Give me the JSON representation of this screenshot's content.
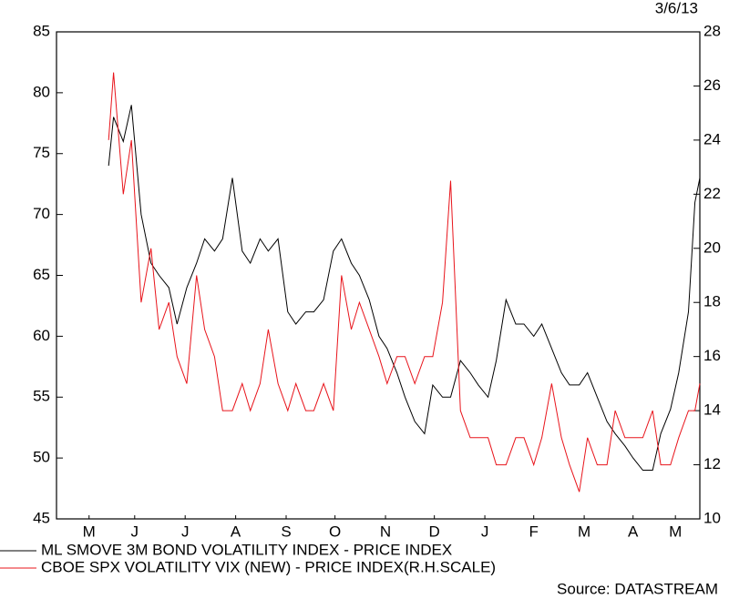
{
  "chart_data": {
    "type": "line",
    "date": "3/6/13",
    "source": "Source: DATASTREAM",
    "x": [
      32,
      35,
      41,
      46,
      52,
      58,
      63,
      69,
      74,
      80,
      86,
      91,
      97,
      102,
      108,
      114,
      119,
      125,
      130,
      136,
      142,
      147,
      153,
      158,
      164,
      170,
      175,
      181,
      186,
      192,
      198,
      203,
      209,
      214,
      220,
      226,
      231,
      237,
      242,
      248,
      254,
      259,
      265,
      270,
      276,
      282,
      287,
      293,
      298,
      304,
      310,
      315,
      321,
      326,
      332,
      338,
      343,
      349,
      354,
      360,
      366,
      371,
      377,
      382,
      388,
      392,
      395
    ],
    "xlim": [
      0,
      395
    ],
    "xticks": [
      {
        "value": 20,
        "label": "M"
      },
      {
        "value": 48,
        "label": "J"
      },
      {
        "value": 79,
        "label": "J"
      },
      {
        "value": 110,
        "label": "A"
      },
      {
        "value": 141,
        "label": "S"
      },
      {
        "value": 171,
        "label": "O"
      },
      {
        "value": 202,
        "label": "N"
      },
      {
        "value": 232,
        "label": "D"
      },
      {
        "value": 263,
        "label": "J"
      },
      {
        "value": 293,
        "label": "F"
      },
      {
        "value": 324,
        "label": "M"
      },
      {
        "value": 354,
        "label": "A"
      },
      {
        "value": 380,
        "label": "M"
      }
    ],
    "ylim": [
      45,
      85
    ],
    "yticks": [
      45,
      50,
      55,
      60,
      65,
      70,
      75,
      80,
      85
    ],
    "y2lim": [
      10,
      28
    ],
    "y2ticks": [
      10,
      12,
      14,
      16,
      18,
      20,
      22,
      24,
      26,
      28
    ],
    "series": [
      {
        "name": "ML SMOVE 3M BOND VOLATILITY INDEX - PRICE INDEX",
        "color": "#000000",
        "values": [
          74,
          78,
          76,
          79,
          70,
          66,
          65,
          64,
          61,
          64,
          66,
          68,
          67,
          68,
          73,
          67,
          66,
          68,
          67,
          68,
          62,
          61,
          62,
          62,
          63,
          67,
          68,
          66,
          65,
          63,
          60,
          59,
          57,
          55,
          53,
          52,
          56,
          55,
          55,
          58,
          57,
          56,
          55,
          58,
          63,
          61,
          61,
          60,
          61,
          59,
          57,
          56,
          56,
          57,
          55,
          53,
          52,
          51,
          50,
          49,
          49,
          52,
          54,
          57,
          62,
          71,
          73
        ]
      },
      {
        "name": "CBOE SPX VOLATILITY VIX (NEW) - PRICE INDEX(R.H.SCALE)",
        "color": "#e8141b",
        "axis": "y2",
        "values": [
          24,
          26.5,
          22,
          24,
          18,
          20,
          17,
          18,
          16,
          15,
          19,
          17,
          16,
          14,
          14,
          15,
          14,
          15,
          17,
          15,
          14,
          15,
          14,
          14,
          15,
          14,
          19,
          17,
          18,
          17,
          16,
          15,
          16,
          16,
          15,
          16,
          16,
          18,
          22.5,
          14,
          13,
          13,
          13,
          12,
          12,
          13,
          13,
          12,
          13,
          15,
          13,
          12,
          11,
          13,
          12,
          12,
          14,
          13,
          13,
          13,
          14,
          12,
          12,
          13,
          14,
          14,
          15
        ]
      }
    ]
  }
}
